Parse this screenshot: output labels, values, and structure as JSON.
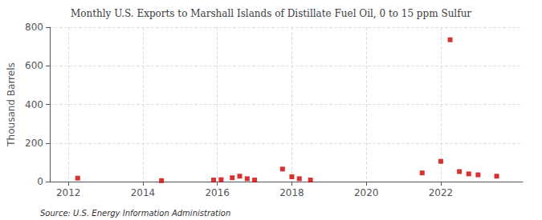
{
  "chart_data": {
    "type": "scatter",
    "title": "Monthly U.S. Exports to Marshall Islands of Distillate Fuel Oil, 0 to 15 ppm Sulfur",
    "y_label": "Thousand Barrels",
    "annotations": [
      "Source: U.S. Energy Information Administration"
    ],
    "x": [
      2012.25,
      2014.5,
      2015.9,
      2016.1,
      2016.4,
      2016.6,
      2016.8,
      2017.0,
      2017.75,
      2018.0,
      2018.2,
      2018.5,
      2021.5,
      2022.0,
      2022.25,
      2022.5,
      2022.75,
      2023.0,
      2023.5
    ],
    "values": [
      18,
      5,
      8,
      10,
      20,
      28,
      15,
      8,
      65,
      25,
      15,
      8,
      45,
      105,
      735,
      52,
      40,
      35,
      28
    ],
    "color": "#cc0000",
    "marker": "square",
    "xlim": [
      2011.5,
      2024.2
    ],
    "xticks": [
      2012,
      2014,
      2016,
      2018,
      2020,
      2022
    ],
    "ylim": [
      0,
      800
    ],
    "yticks": [
      0,
      200,
      400,
      600,
      800
    ],
    "grid": true
  }
}
